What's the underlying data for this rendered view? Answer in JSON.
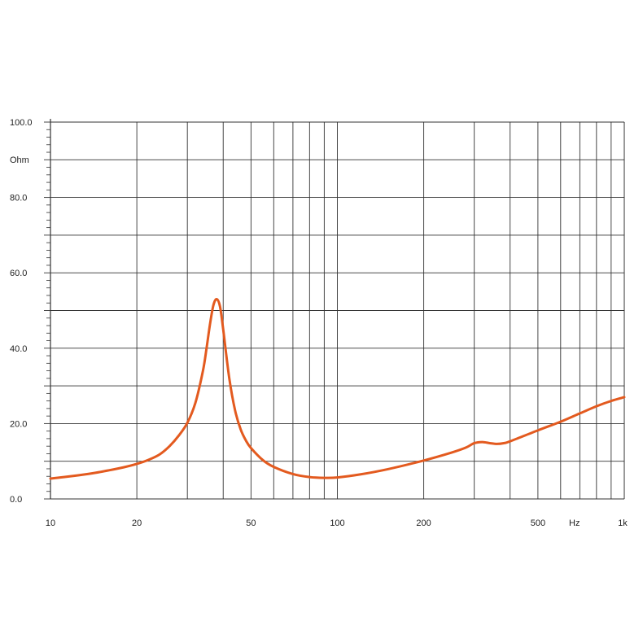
{
  "chart_data": {
    "type": "line",
    "x_scale": "log",
    "xlim": [
      10,
      1000
    ],
    "ylim": [
      0,
      100
    ],
    "ylabel": "Ohm",
    "xlabel": "Hz",
    "grid": true,
    "y_ticks": [
      {
        "value": 0,
        "label": "0.0"
      },
      {
        "value": 20,
        "label": "20.0"
      },
      {
        "value": 40,
        "label": "40.0"
      },
      {
        "value": 60,
        "label": "60.0"
      },
      {
        "value": 80,
        "label": "80.0"
      },
      {
        "value": 100,
        "label": "100.0"
      }
    ],
    "y_gridlines": [
      0,
      10,
      20,
      30,
      40,
      50,
      60,
      70,
      80,
      90,
      100
    ],
    "x_ticks": [
      {
        "value": 10,
        "label": "10"
      },
      {
        "value": 20,
        "label": "20"
      },
      {
        "value": 50,
        "label": "50"
      },
      {
        "value": 100,
        "label": "100"
      },
      {
        "value": 200,
        "label": "200"
      },
      {
        "value": 500,
        "label": "500"
      },
      {
        "value": 1000,
        "label": "1k"
      }
    ],
    "x_gridlines": [
      20,
      30,
      40,
      50,
      60,
      70,
      80,
      90,
      100,
      200,
      300,
      400,
      500,
      600,
      700,
      800,
      900,
      1000
    ],
    "line_color": "#e35a1f",
    "grid_color": "#333333",
    "series": [
      {
        "x": [
          10,
          12,
          14,
          16,
          18,
          20,
          22,
          24,
          26,
          28,
          30,
          32,
          34,
          35,
          36,
          37,
          38,
          39,
          40,
          42,
          44,
          46,
          48,
          50,
          55,
          60,
          70,
          80,
          90,
          100,
          120,
          150,
          200,
          250,
          280,
          300,
          320,
          340,
          360,
          380,
          400,
          500,
          600,
          700,
          800,
          900,
          1000
        ],
        "y": [
          5.4,
          6.1,
          6.8,
          7.6,
          8.4,
          9.3,
          10.4,
          11.8,
          14.0,
          16.8,
          20.2,
          25.5,
          34.0,
          40.0,
          46.5,
          51.5,
          53.0,
          51.0,
          45.0,
          32.0,
          23.5,
          18.5,
          15.5,
          13.5,
          10.3,
          8.5,
          6.6,
          5.8,
          5.6,
          5.7,
          6.5,
          7.9,
          10.2,
          12.3,
          13.6,
          14.8,
          15.1,
          14.8,
          14.6,
          14.8,
          15.3,
          18.2,
          20.5,
          22.7,
          24.6,
          26.0,
          27.0
        ]
      }
    ]
  }
}
